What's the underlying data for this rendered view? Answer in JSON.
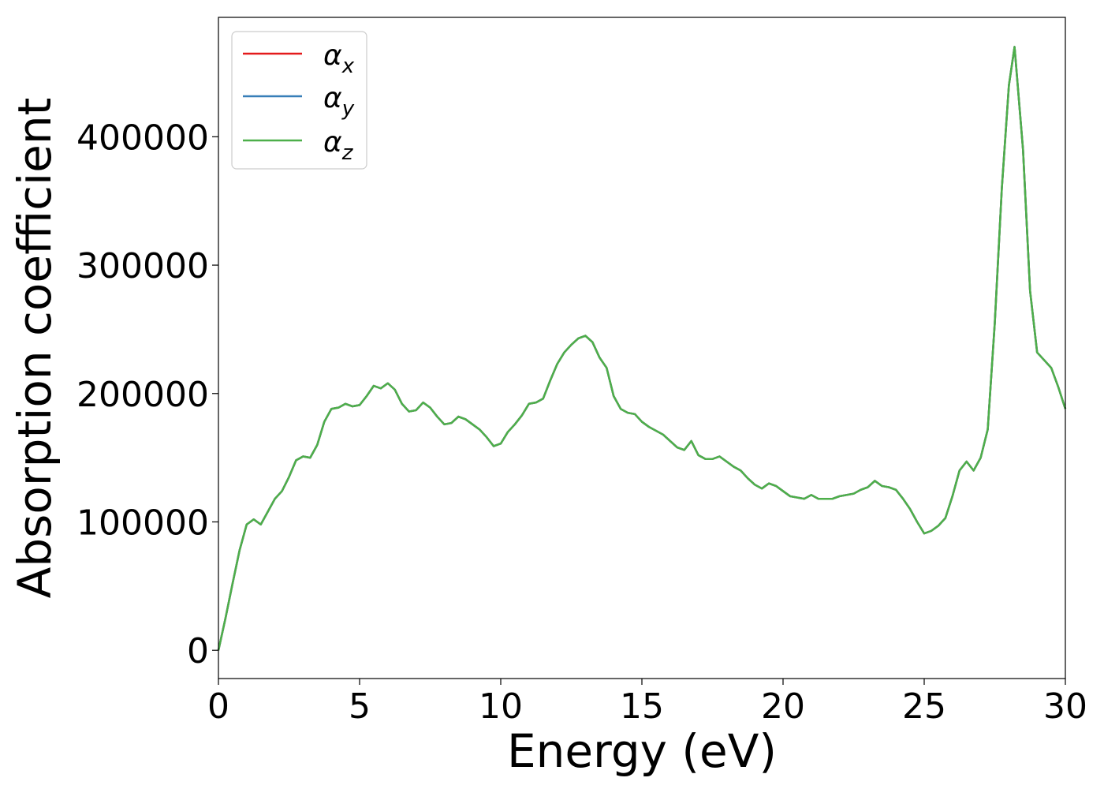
{
  "chart_data": {
    "type": "line",
    "title": "",
    "xlabel": "Energy (eV)",
    "ylabel": "Absorption coefficient",
    "xlim": [
      0,
      30
    ],
    "ylim": [
      -22000,
      493000
    ],
    "xticks": [
      0,
      5,
      10,
      15,
      20,
      25,
      30
    ],
    "yticks": [
      0,
      100000,
      200000,
      300000,
      400000
    ],
    "grid": false,
    "legend_position": "top-left",
    "x": [
      0,
      0.25,
      0.5,
      0.75,
      1.0,
      1.25,
      1.5,
      1.75,
      2.0,
      2.25,
      2.5,
      2.75,
      3.0,
      3.25,
      3.5,
      3.75,
      4.0,
      4.25,
      4.5,
      4.75,
      5.0,
      5.25,
      5.5,
      5.75,
      6.0,
      6.25,
      6.5,
      6.75,
      7.0,
      7.25,
      7.5,
      7.75,
      8.0,
      8.25,
      8.5,
      8.75,
      9.0,
      9.25,
      9.5,
      9.75,
      10.0,
      10.25,
      10.5,
      10.75,
      11.0,
      11.25,
      11.5,
      11.75,
      12.0,
      12.25,
      12.5,
      12.75,
      13.0,
      13.25,
      13.5,
      13.75,
      14.0,
      14.25,
      14.5,
      14.75,
      15.0,
      15.25,
      15.5,
      15.75,
      16.0,
      16.25,
      16.5,
      16.75,
      17.0,
      17.25,
      17.5,
      17.75,
      18.0,
      18.25,
      18.5,
      18.75,
      19.0,
      19.25,
      19.5,
      19.75,
      20.0,
      20.25,
      20.5,
      20.75,
      21.0,
      21.25,
      21.5,
      21.75,
      22.0,
      22.25,
      22.5,
      22.75,
      23.0,
      23.25,
      23.5,
      23.75,
      24.0,
      24.25,
      24.5,
      24.75,
      25.0,
      25.25,
      25.5,
      25.75,
      26.0,
      26.25,
      26.5,
      26.75,
      27.0,
      27.25,
      27.5,
      27.75,
      28.0,
      28.2,
      28.5,
      28.75,
      29.0,
      29.25,
      29.5,
      29.75,
      30.0
    ],
    "series": [
      {
        "name": "α_x",
        "color": "#e41a1c",
        "values": [
          0,
          25000,
          52000,
          78000,
          98000,
          102000,
          98000,
          108000,
          118000,
          124000,
          135000,
          148000,
          151000,
          150000,
          160000,
          178000,
          188000,
          189000,
          192000,
          190000,
          191000,
          198000,
          206000,
          204000,
          208000,
          203000,
          192000,
          186000,
          187000,
          193000,
          189000,
          182000,
          176000,
          177000,
          182000,
          180000,
          176000,
          172000,
          166000,
          159000,
          161000,
          170000,
          176000,
          183000,
          192000,
          193000,
          196000,
          210000,
          223000,
          232000,
          238000,
          243000,
          245000,
          240000,
          228000,
          220000,
          198000,
          188000,
          185000,
          184000,
          178000,
          174000,
          171000,
          168000,
          163000,
          158000,
          156000,
          163000,
          152000,
          149000,
          149000,
          151000,
          147000,
          143000,
          140000,
          134000,
          129000,
          126000,
          130000,
          128000,
          124000,
          120000,
          119000,
          118000,
          121000,
          118000,
          118000,
          118000,
          120000,
          121000,
          122000,
          125000,
          127000,
          132000,
          128000,
          127000,
          125000,
          118000,
          110000,
          100000,
          91000,
          93000,
          97000,
          103000,
          120000,
          140000,
          147000,
          140000,
          150000,
          172000,
          255000,
          360000,
          440000,
          470000,
          390000,
          280000,
          232000,
          226000,
          220000,
          205000,
          188000
        ]
      },
      {
        "name": "α_y",
        "color": "#377eb8",
        "values": [
          0,
          25000,
          52000,
          78000,
          98000,
          102000,
          98000,
          108000,
          118000,
          124000,
          135000,
          148000,
          151000,
          150000,
          160000,
          178000,
          188000,
          189000,
          192000,
          190000,
          191000,
          198000,
          206000,
          204000,
          208000,
          203000,
          192000,
          186000,
          187000,
          193000,
          189000,
          182000,
          176000,
          177000,
          182000,
          180000,
          176000,
          172000,
          166000,
          159000,
          161000,
          170000,
          176000,
          183000,
          192000,
          193000,
          196000,
          210000,
          223000,
          232000,
          238000,
          243000,
          245000,
          240000,
          228000,
          220000,
          198000,
          188000,
          185000,
          184000,
          178000,
          174000,
          171000,
          168000,
          163000,
          158000,
          156000,
          163000,
          152000,
          149000,
          149000,
          151000,
          147000,
          143000,
          140000,
          134000,
          129000,
          126000,
          130000,
          128000,
          124000,
          120000,
          119000,
          118000,
          121000,
          118000,
          118000,
          118000,
          120000,
          121000,
          122000,
          125000,
          127000,
          132000,
          128000,
          127000,
          125000,
          118000,
          110000,
          100000,
          91000,
          93000,
          97000,
          103000,
          120000,
          140000,
          147000,
          140000,
          150000,
          172000,
          255000,
          360000,
          440000,
          470000,
          390000,
          280000,
          232000,
          226000,
          220000,
          205000,
          188000
        ]
      },
      {
        "name": "α_z",
        "color": "#4daf4a",
        "values": [
          0,
          25000,
          52000,
          78000,
          98000,
          102000,
          98000,
          108000,
          118000,
          124000,
          135000,
          148000,
          151000,
          150000,
          160000,
          178000,
          188000,
          189000,
          192000,
          190000,
          191000,
          198000,
          206000,
          204000,
          208000,
          203000,
          192000,
          186000,
          187000,
          193000,
          189000,
          182000,
          176000,
          177000,
          182000,
          180000,
          176000,
          172000,
          166000,
          159000,
          161000,
          170000,
          176000,
          183000,
          192000,
          193000,
          196000,
          210000,
          223000,
          232000,
          238000,
          243000,
          245000,
          240000,
          228000,
          220000,
          198000,
          188000,
          185000,
          184000,
          178000,
          174000,
          171000,
          168000,
          163000,
          158000,
          156000,
          163000,
          152000,
          149000,
          149000,
          151000,
          147000,
          143000,
          140000,
          134000,
          129000,
          126000,
          130000,
          128000,
          124000,
          120000,
          119000,
          118000,
          121000,
          118000,
          118000,
          118000,
          120000,
          121000,
          122000,
          125000,
          127000,
          132000,
          128000,
          127000,
          125000,
          118000,
          110000,
          100000,
          91000,
          93000,
          97000,
          103000,
          120000,
          140000,
          147000,
          140000,
          150000,
          172000,
          255000,
          360000,
          440000,
          470000,
          390000,
          280000,
          232000,
          226000,
          220000,
          205000,
          188000
        ]
      }
    ]
  },
  "legend": {
    "entries": [
      {
        "symbol": "α",
        "sub": "x"
      },
      {
        "symbol": "α",
        "sub": "y"
      },
      {
        "symbol": "α",
        "sub": "z"
      }
    ]
  }
}
